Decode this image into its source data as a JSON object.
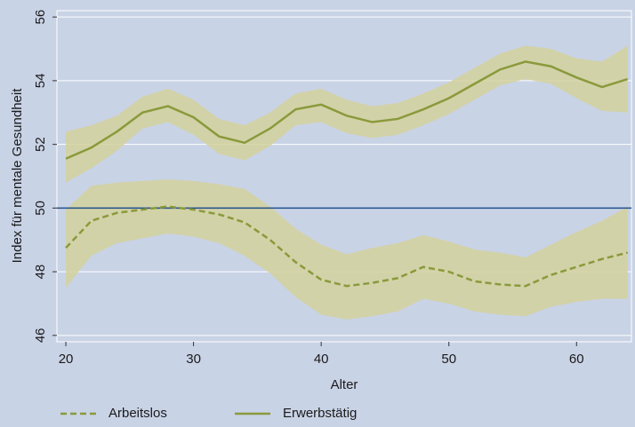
{
  "chart_data": {
    "type": "line",
    "xlabel": "Alter",
    "ylabel": "Index für mentale Gesundheit",
    "x": [
      20,
      22,
      24,
      26,
      28,
      30,
      32,
      34,
      36,
      38,
      40,
      42,
      44,
      46,
      48,
      50,
      52,
      54,
      56,
      58,
      60,
      62,
      64
    ],
    "xlim": [
      19.3,
      64.3
    ],
    "xticks": [
      20,
      30,
      40,
      50,
      60
    ],
    "ylim": [
      45.8,
      56.2
    ],
    "yticks": [
      46,
      48,
      50,
      52,
      54,
      56
    ],
    "grid": true,
    "band_color": "#d4d19c",
    "line_color_note_free": null,
    "reference_line": {
      "value": 50,
      "color": "#1f4e8c"
    },
    "series": [
      {
        "name": "Arbeitslos",
        "color": "#8a9a3b",
        "dashed": true,
        "values": [
          48.75,
          49.6,
          49.85,
          49.95,
          50.05,
          49.95,
          49.8,
          49.55,
          49.0,
          48.3,
          47.75,
          47.55,
          47.65,
          47.8,
          48.15,
          48.0,
          47.7,
          47.6,
          47.55,
          47.9,
          48.15,
          48.4,
          48.6
        ],
        "upper": [
          49.95,
          50.7,
          50.8,
          50.85,
          50.9,
          50.85,
          50.75,
          50.6,
          50.05,
          49.35,
          48.85,
          48.55,
          48.75,
          48.9,
          49.15,
          48.95,
          48.7,
          48.6,
          48.45,
          48.85,
          49.25,
          49.6,
          50.05
        ],
        "lower": [
          47.5,
          48.5,
          48.9,
          49.05,
          49.2,
          49.1,
          48.9,
          48.5,
          47.95,
          47.2,
          46.65,
          46.5,
          46.6,
          46.75,
          47.15,
          47.0,
          46.75,
          46.65,
          46.6,
          46.9,
          47.05,
          47.15,
          47.15
        ]
      },
      {
        "name": "Erwerbstätig",
        "color": "#8a9a3b",
        "dashed": false,
        "values": [
          51.55,
          51.9,
          52.4,
          53.0,
          53.2,
          52.85,
          52.25,
          52.05,
          52.5,
          53.1,
          53.25,
          52.9,
          52.7,
          52.8,
          53.1,
          53.45,
          53.9,
          54.35,
          54.6,
          54.45,
          54.1,
          53.8,
          54.05
        ],
        "upper": [
          52.4,
          52.6,
          52.9,
          53.5,
          53.75,
          53.4,
          52.8,
          52.6,
          53.0,
          53.6,
          53.75,
          53.4,
          53.2,
          53.3,
          53.6,
          53.95,
          54.4,
          54.85,
          55.1,
          55.0,
          54.7,
          54.6,
          55.1
        ],
        "lower": [
          50.8,
          51.25,
          51.8,
          52.5,
          52.7,
          52.3,
          51.7,
          51.5,
          51.95,
          52.6,
          52.7,
          52.35,
          52.2,
          52.3,
          52.6,
          52.95,
          53.4,
          53.85,
          54.05,
          53.9,
          53.45,
          53.05,
          53.0
        ]
      }
    ]
  }
}
